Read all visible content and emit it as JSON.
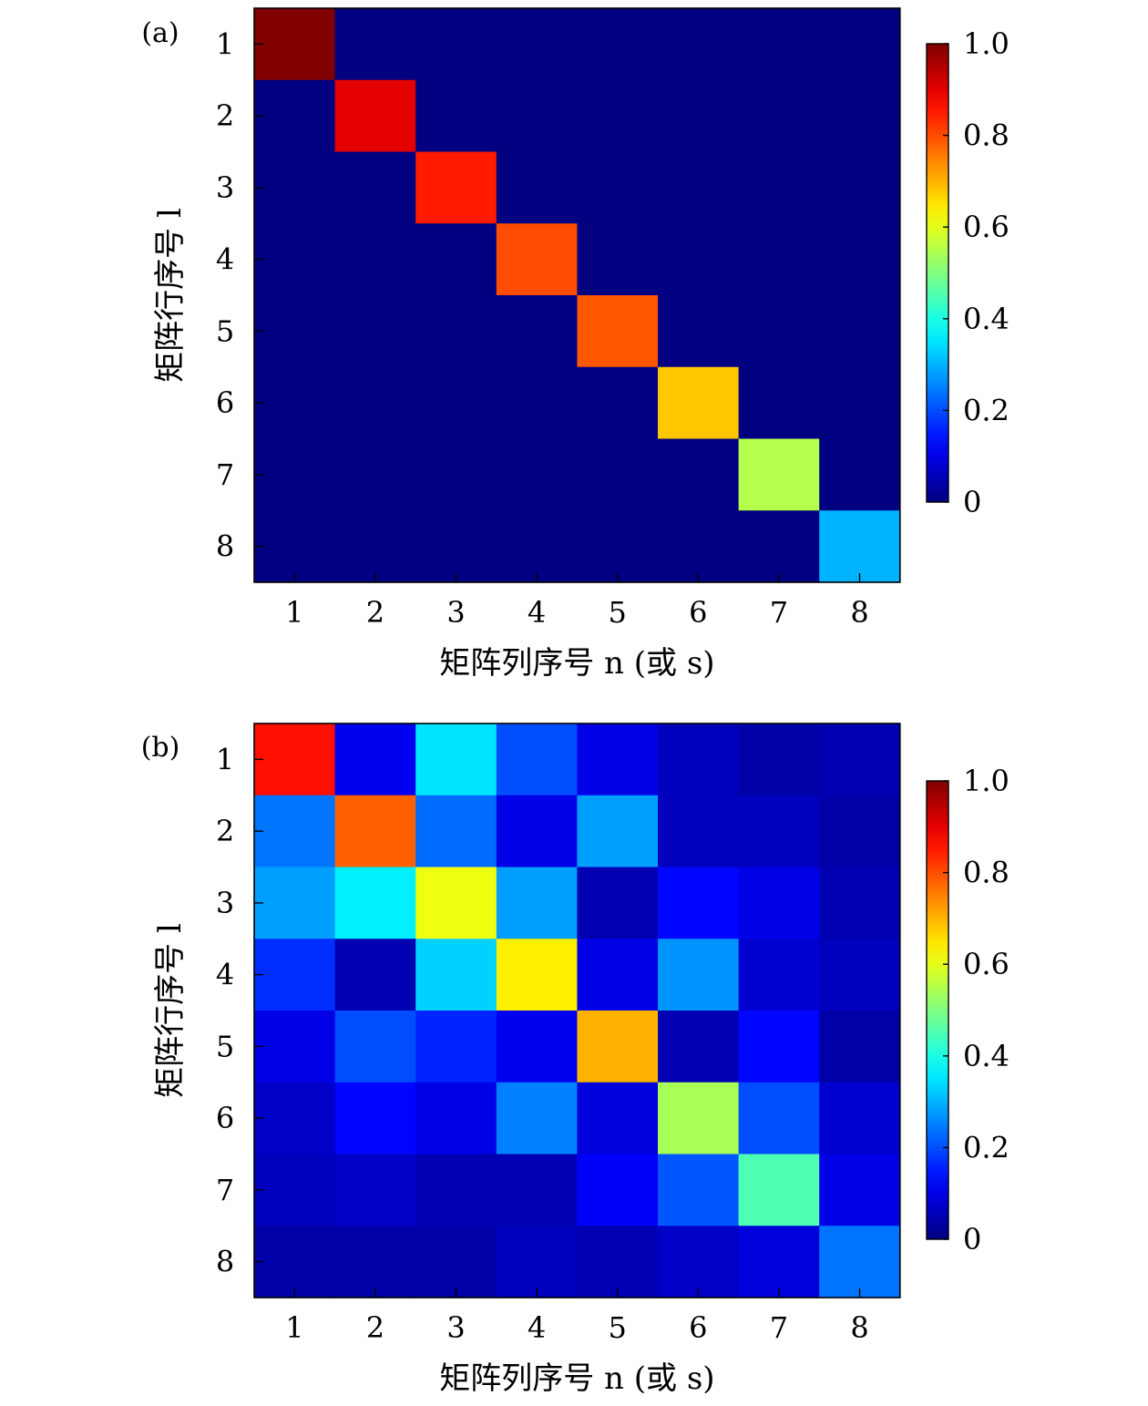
{
  "chart_data": [
    {
      "panel_label": "(a)",
      "type": "heatmap",
      "xlabel": "矩阵列序号 n (或 s)",
      "ylabel": "矩阵行序号 l",
      "x_categories": [
        "1",
        "2",
        "3",
        "4",
        "5",
        "6",
        "7",
        "8"
      ],
      "y_categories": [
        "1",
        "2",
        "3",
        "4",
        "5",
        "6",
        "7",
        "8"
      ],
      "colorbar": {
        "ticks": [
          "0",
          "0.2",
          "0.4",
          "0.6",
          "0.8",
          "1.0"
        ],
        "range": [
          0,
          1
        ],
        "colormap": "jet"
      },
      "values": [
        [
          1.0,
          0,
          0,
          0,
          0,
          0,
          0,
          0
        ],
        [
          0,
          0.9,
          0,
          0,
          0,
          0,
          0,
          0
        ],
        [
          0,
          0,
          0.85,
          0,
          0,
          0,
          0,
          0
        ],
        [
          0,
          0,
          0,
          0.8,
          0,
          0,
          0,
          0
        ],
        [
          0,
          0,
          0,
          0,
          0.79,
          0,
          0,
          0
        ],
        [
          0,
          0,
          0,
          0,
          0,
          0.68,
          0,
          0
        ],
        [
          0,
          0,
          0,
          0,
          0,
          0,
          0.55,
          0
        ],
        [
          0,
          0,
          0,
          0,
          0,
          0,
          0,
          0.3
        ]
      ]
    },
    {
      "panel_label": "(b)",
      "type": "heatmap",
      "xlabel": "矩阵列序号 n (或 s)",
      "ylabel": "矩阵行序号 l",
      "x_categories": [
        "1",
        "2",
        "3",
        "4",
        "5",
        "6",
        "7",
        "8"
      ],
      "y_categories": [
        "1",
        "2",
        "3",
        "4",
        "5",
        "6",
        "7",
        "8"
      ],
      "colorbar": {
        "ticks": [
          "0",
          "0.2",
          "0.4",
          "0.6",
          "0.8",
          "1.0"
        ],
        "range": [
          0,
          1
        ],
        "colormap": "jet"
      },
      "values": [
        [
          0.86,
          0.11,
          0.35,
          0.2,
          0.1,
          0.06,
          0.04,
          0.05
        ],
        [
          0.24,
          0.78,
          0.23,
          0.1,
          0.28,
          0.06,
          0.06,
          0.04
        ],
        [
          0.28,
          0.36,
          0.61,
          0.28,
          0.05,
          0.13,
          0.1,
          0.05
        ],
        [
          0.17,
          0.05,
          0.33,
          0.64,
          0.1,
          0.27,
          0.08,
          0.06
        ],
        [
          0.1,
          0.2,
          0.16,
          0.11,
          0.7,
          0.05,
          0.13,
          0.04
        ],
        [
          0.07,
          0.13,
          0.1,
          0.25,
          0.09,
          0.54,
          0.2,
          0.08
        ],
        [
          0.06,
          0.07,
          0.05,
          0.05,
          0.12,
          0.21,
          0.45,
          0.1
        ],
        [
          0.04,
          0.04,
          0.04,
          0.06,
          0.05,
          0.07,
          0.09,
          0.24
        ]
      ]
    }
  ]
}
